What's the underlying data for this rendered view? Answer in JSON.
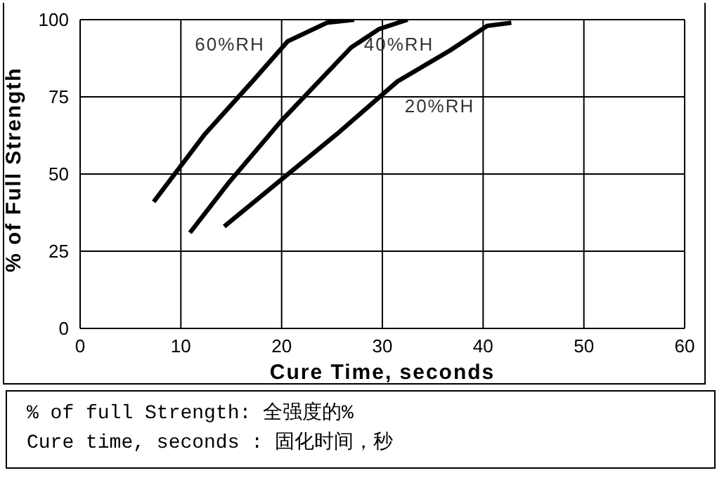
{
  "chart_data": {
    "type": "line",
    "xlabel": "Cure Time, seconds",
    "ylabel": "% of Full Strength",
    "xlim": [
      0,
      60
    ],
    "xticks": [
      0,
      10,
      20,
      30,
      40,
      50,
      60
    ],
    "ylim": [
      0,
      100
    ],
    "yticks": [
      0,
      25,
      50,
      75,
      100
    ],
    "grid": true,
    "marker": "none",
    "line_style": "solid",
    "series": [
      {
        "name": "60%RH",
        "color": "#000000",
        "x": [
          7.3,
          12.4,
          17.1,
          20.6,
          24.5,
          27.2
        ],
        "values": [
          41,
          63,
          80,
          93,
          99,
          100
        ]
      },
      {
        "name": "40%RH",
        "color": "#000000",
        "x": [
          10.9,
          14.7,
          19.9,
          26.9,
          29.7,
          32.5
        ],
        "values": [
          31,
          47,
          67,
          91,
          97,
          100
        ]
      },
      {
        "name": "20%RH",
        "color": "#000000",
        "x": [
          14.3,
          19.9,
          25.5,
          31.5,
          36.7,
          40.4,
          42.8
        ],
        "values": [
          33,
          48,
          63,
          80,
          90,
          98,
          99
        ]
      }
    ],
    "annotations": [
      "% of full Strength: 全强度的%",
      "Cure time, seconds : 固化时间，秒"
    ]
  }
}
